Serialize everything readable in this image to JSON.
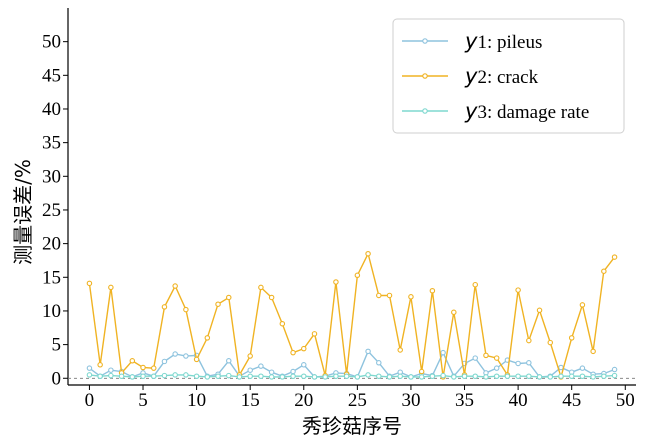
{
  "chart_data": {
    "type": "line",
    "xlabel": "秀珍菇序号",
    "ylabel": "测量误差/%",
    "xlim": [
      -2,
      51
    ],
    "ylim": [
      -1,
      55
    ],
    "xticks": [
      0,
      5,
      10,
      15,
      20,
      25,
      30,
      35,
      40,
      45,
      50
    ],
    "yticks": [
      0,
      5,
      10,
      15,
      20,
      25,
      30,
      35,
      40,
      45,
      50
    ],
    "grid": false,
    "legend_position": "top-right",
    "reference_line_y": 0,
    "x": [
      0,
      1,
      2,
      3,
      4,
      5,
      6,
      7,
      8,
      9,
      10,
      11,
      12,
      13,
      14,
      15,
      16,
      17,
      18,
      19,
      20,
      21,
      22,
      23,
      24,
      25,
      26,
      27,
      28,
      29,
      30,
      31,
      32,
      33,
      34,
      35,
      36,
      37,
      38,
      39,
      40,
      41,
      42,
      43,
      44,
      45,
      46,
      47,
      48,
      49
    ],
    "series": [
      {
        "name": "y1: pileus",
        "var": "y",
        "label_rest": "1: pileus",
        "color": "#8ec3de",
        "values": [
          1.5,
          0.3,
          1.2,
          1.0,
          0.2,
          0.8,
          0.3,
          2.5,
          3.6,
          3.3,
          3.4,
          0.3,
          0.6,
          2.6,
          0.3,
          1.2,
          1.8,
          0.9,
          0.3,
          1.0,
          2.0,
          0.2,
          0.3,
          0.8,
          0.7,
          0.2,
          4.0,
          2.3,
          0.3,
          0.9,
          0.2,
          0.7,
          0.4,
          3.8,
          0.3,
          2.2,
          3.0,
          0.8,
          1.5,
          2.7,
          2.2,
          2.3,
          0.2,
          0.3,
          1.6,
          0.9,
          1.5,
          0.6,
          0.7,
          1.3
        ]
      },
      {
        "name": "y2: crack",
        "var": "y",
        "label_rest": "2: crack",
        "color": "#f0b323",
        "values": [
          14.1,
          2.0,
          13.5,
          0.8,
          2.6,
          1.6,
          1.5,
          10.6,
          13.7,
          10.2,
          2.8,
          6.0,
          11.0,
          12.0,
          0.5,
          3.3,
          13.5,
          12.0,
          8.1,
          3.8,
          4.4,
          6.6,
          0.4,
          14.3,
          0.6,
          15.3,
          18.5,
          12.3,
          12.3,
          4.2,
          12.1,
          1.0,
          13.0,
          0.2,
          9.8,
          0.5,
          13.9,
          3.4,
          3.0,
          0.5,
          13.1,
          5.6,
          10.1,
          5.3,
          0.2,
          6.0,
          10.9,
          4.0,
          15.9,
          18.0
        ]
      },
      {
        "name": "y3: damage rate",
        "var": "y",
        "label_rest": "3: damage rate",
        "color": "#7ed8cf",
        "values": [
          0.5,
          0.3,
          0.4,
          0.3,
          0.2,
          0.3,
          0.3,
          0.4,
          0.5,
          0.5,
          0.3,
          0.2,
          0.3,
          0.4,
          0.2,
          0.3,
          0.3,
          0.2,
          0.2,
          0.3,
          0.3,
          0.2,
          0.2,
          0.3,
          0.3,
          0.2,
          0.5,
          0.3,
          0.2,
          0.3,
          0.2,
          0.2,
          0.3,
          0.4,
          0.2,
          0.3,
          0.3,
          0.2,
          0.3,
          0.3,
          0.3,
          0.3,
          0.2,
          0.2,
          0.3,
          0.3,
          0.3,
          0.2,
          0.3,
          0.4
        ]
      }
    ]
  }
}
